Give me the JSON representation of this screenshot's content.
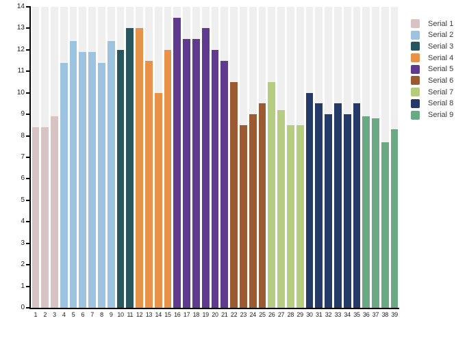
{
  "chart_data": {
    "type": "bar",
    "title": "",
    "xlabel": "",
    "ylabel": "",
    "ylim": [
      0,
      14
    ],
    "ytick_step": 1,
    "grid": false,
    "plot_background": "alternating vertical stripes behind each bar",
    "stripe_color": "#f0efef",
    "axis_color": "#000000",
    "legend_position": "right",
    "categories": [
      "1",
      "2",
      "3",
      "4",
      "5",
      "6",
      "7",
      "8",
      "9",
      "10",
      "11",
      "12",
      "13",
      "14",
      "15",
      "16",
      "17",
      "18",
      "19",
      "20",
      "21",
      "22",
      "23",
      "24",
      "25",
      "26",
      "27",
      "28",
      "29",
      "30",
      "31",
      "32",
      "33",
      "34",
      "35",
      "36",
      "37",
      "38",
      "39"
    ],
    "series": [
      {
        "name": "Serial 1",
        "color": "#d7c3c3",
        "values": [
          8.4,
          8.4,
          8.9
        ]
      },
      {
        "name": "Serial 2",
        "color": "#9cc3e0",
        "values": [
          11.4,
          12.4,
          11.9,
          11.9,
          11.4,
          12.4
        ]
      },
      {
        "name": "Serial 3",
        "color": "#27565f",
        "values": [
          12.0,
          13.0
        ]
      },
      {
        "name": "Serial 4",
        "color": "#e79149",
        "values": [
          13.0,
          11.5,
          10.0,
          12.0
        ]
      },
      {
        "name": "Serial 5",
        "color": "#5f3a8e",
        "values": [
          13.5,
          12.5,
          12.5,
          13.0,
          12.0,
          11.5
        ]
      },
      {
        "name": "Serial 6",
        "color": "#9a5b33",
        "values": [
          10.5,
          8.5,
          9.0,
          9.5
        ]
      },
      {
        "name": "Serial 7",
        "color": "#b6cc7e",
        "values": [
          10.5,
          9.2,
          8.5,
          8.5
        ]
      },
      {
        "name": "Serial 8",
        "color": "#253a67",
        "values": [
          10.0,
          9.5,
          9.0,
          9.5,
          9.0,
          9.5
        ]
      },
      {
        "name": "Serial 9",
        "color": "#6aa983",
        "values": [
          8.9,
          8.8,
          7.7,
          8.3
        ]
      }
    ],
    "legend_labels": [
      "Serial 1",
      "Serial 2",
      "Serial 3",
      "Serial 4",
      "Serial 5",
      "Serial 6",
      "Serial 7",
      "Serial 8",
      "Serial 9"
    ],
    "ytick_labels": [
      "0",
      "1",
      "2",
      "3",
      "4",
      "5",
      "6",
      "7",
      "8",
      "9",
      "10",
      "11",
      "12",
      "13",
      "14"
    ]
  }
}
